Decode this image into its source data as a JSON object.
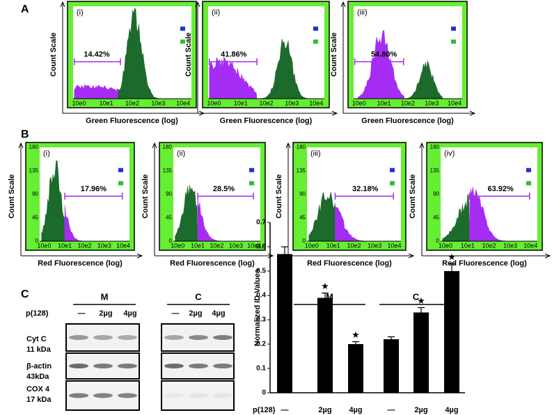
{
  "panel_a": {
    "label": "A",
    "y_axis_title": "Count Scale",
    "x_axis_title": "Green Fluorescence (log)",
    "x_tick_labels": [
      "10e0",
      "10e1",
      "10e2",
      "10e3",
      "10e4"
    ],
    "plots": [
      {
        "label": "(i)",
        "gate_label": "14.42%"
      },
      {
        "label": "(ii)",
        "gate_label": "41.86%"
      },
      {
        "label": "(iii)",
        "gate_label": "54.80%"
      }
    ]
  },
  "panel_b": {
    "label": "B",
    "y_axis_title": "Count Scale",
    "x_axis_title": "Red Fluorescence (log)",
    "x_tick_labels": [
      "10e0",
      "10e1",
      "10e2",
      "10e3",
      "10e4"
    ],
    "y_tick_labels": [
      0,
      45,
      90,
      135,
      180
    ],
    "plots": [
      {
        "label": "(i)",
        "gate_label": "17.96%"
      },
      {
        "label": "(ii)",
        "gate_label": "28.5%"
      },
      {
        "label": "(iii)",
        "gate_label": "32.18%"
      },
      {
        "label": "(iv)",
        "gate_label": "63.92%"
      }
    ]
  },
  "panel_c": {
    "label": "C",
    "treatment_label": "p(128)",
    "headers": [
      "M",
      "C"
    ],
    "lanes": [
      "—",
      "2µg",
      "4µg"
    ],
    "rows": [
      {
        "name": "Cyt C",
        "weight": "11 kDa"
      },
      {
        "name": "β-actin",
        "weight": "43kDa"
      },
      {
        "name": "COX 4",
        "weight": "17 kDa"
      }
    ]
  },
  "chart_data": {
    "type": "bar",
    "y_axis_title": "Normalized ID Values",
    "x_label": "p(128)",
    "groups": [
      "M",
      "C"
    ],
    "categories": [
      "—",
      "2µg",
      "4µg",
      "—",
      "2µg",
      "4µg"
    ],
    "values": [
      0.57,
      0.39,
      0.2,
      0.22,
      0.33,
      0.5
    ],
    "errors": [
      0.03,
      0.02,
      0.01,
      0.01,
      0.02,
      0.03
    ],
    "color": "#000000",
    "ylim": [
      0,
      0.7
    ],
    "yticks": [
      0,
      0.1,
      0.2,
      0.3,
      0.4,
      0.5,
      0.6,
      0.7
    ]
  }
}
